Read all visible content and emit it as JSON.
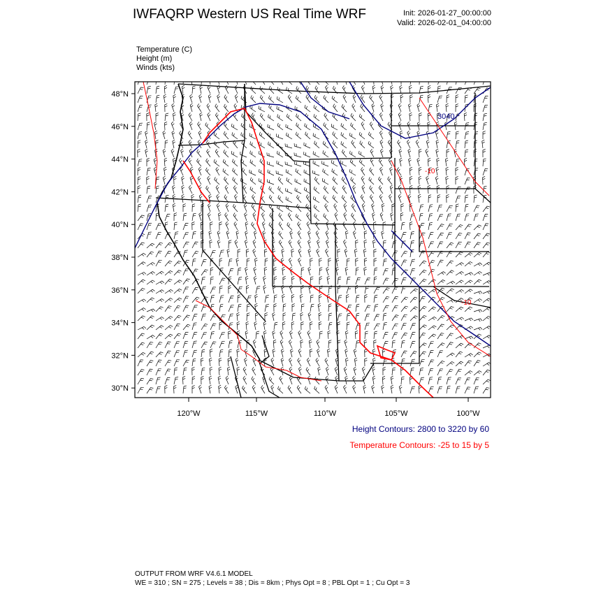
{
  "header": {
    "title": "IWFAQRP Western US Real Time WRF",
    "init": "Init: 2026-01-27_00:00:00",
    "valid": "Valid: 2026-02-01_04:00:00"
  },
  "fields": {
    "temperature": "Temperature   (C)",
    "height": "Height   (m)",
    "winds": "Winds   (kts)"
  },
  "axes": {
    "lat_labels": [
      "48°N",
      "46°N",
      "44°N",
      "42°N",
      "40°N",
      "38°N",
      "36°N",
      "34°N",
      "32°N",
      "30°N"
    ],
    "lon_labels": [
      "120°W",
      "115°W",
      "110°W",
      "105°W",
      "100°W"
    ]
  },
  "contour_labels": {
    "height_3040": "3040",
    "temp_m10_a": "-10",
    "temp_m10_b": "-10"
  },
  "legend": {
    "height": "Height Contours: 2800 to 3220 by 60",
    "temperature": "Temperature Contours: -25 to 15 by 5"
  },
  "colors": {
    "height": "#00007f",
    "temperature": "#ff0000",
    "boundaries": "#000000"
  },
  "footer": {
    "line1": "OUTPUT FROM WRF V4.6.1 MODEL",
    "line2": "WE = 310 ; SN = 275 ; Levels = 38 ; Dis = 8km ; Phys Opt = 8 ; PBL Opt = 1 ; Cu Opt = 3"
  }
}
